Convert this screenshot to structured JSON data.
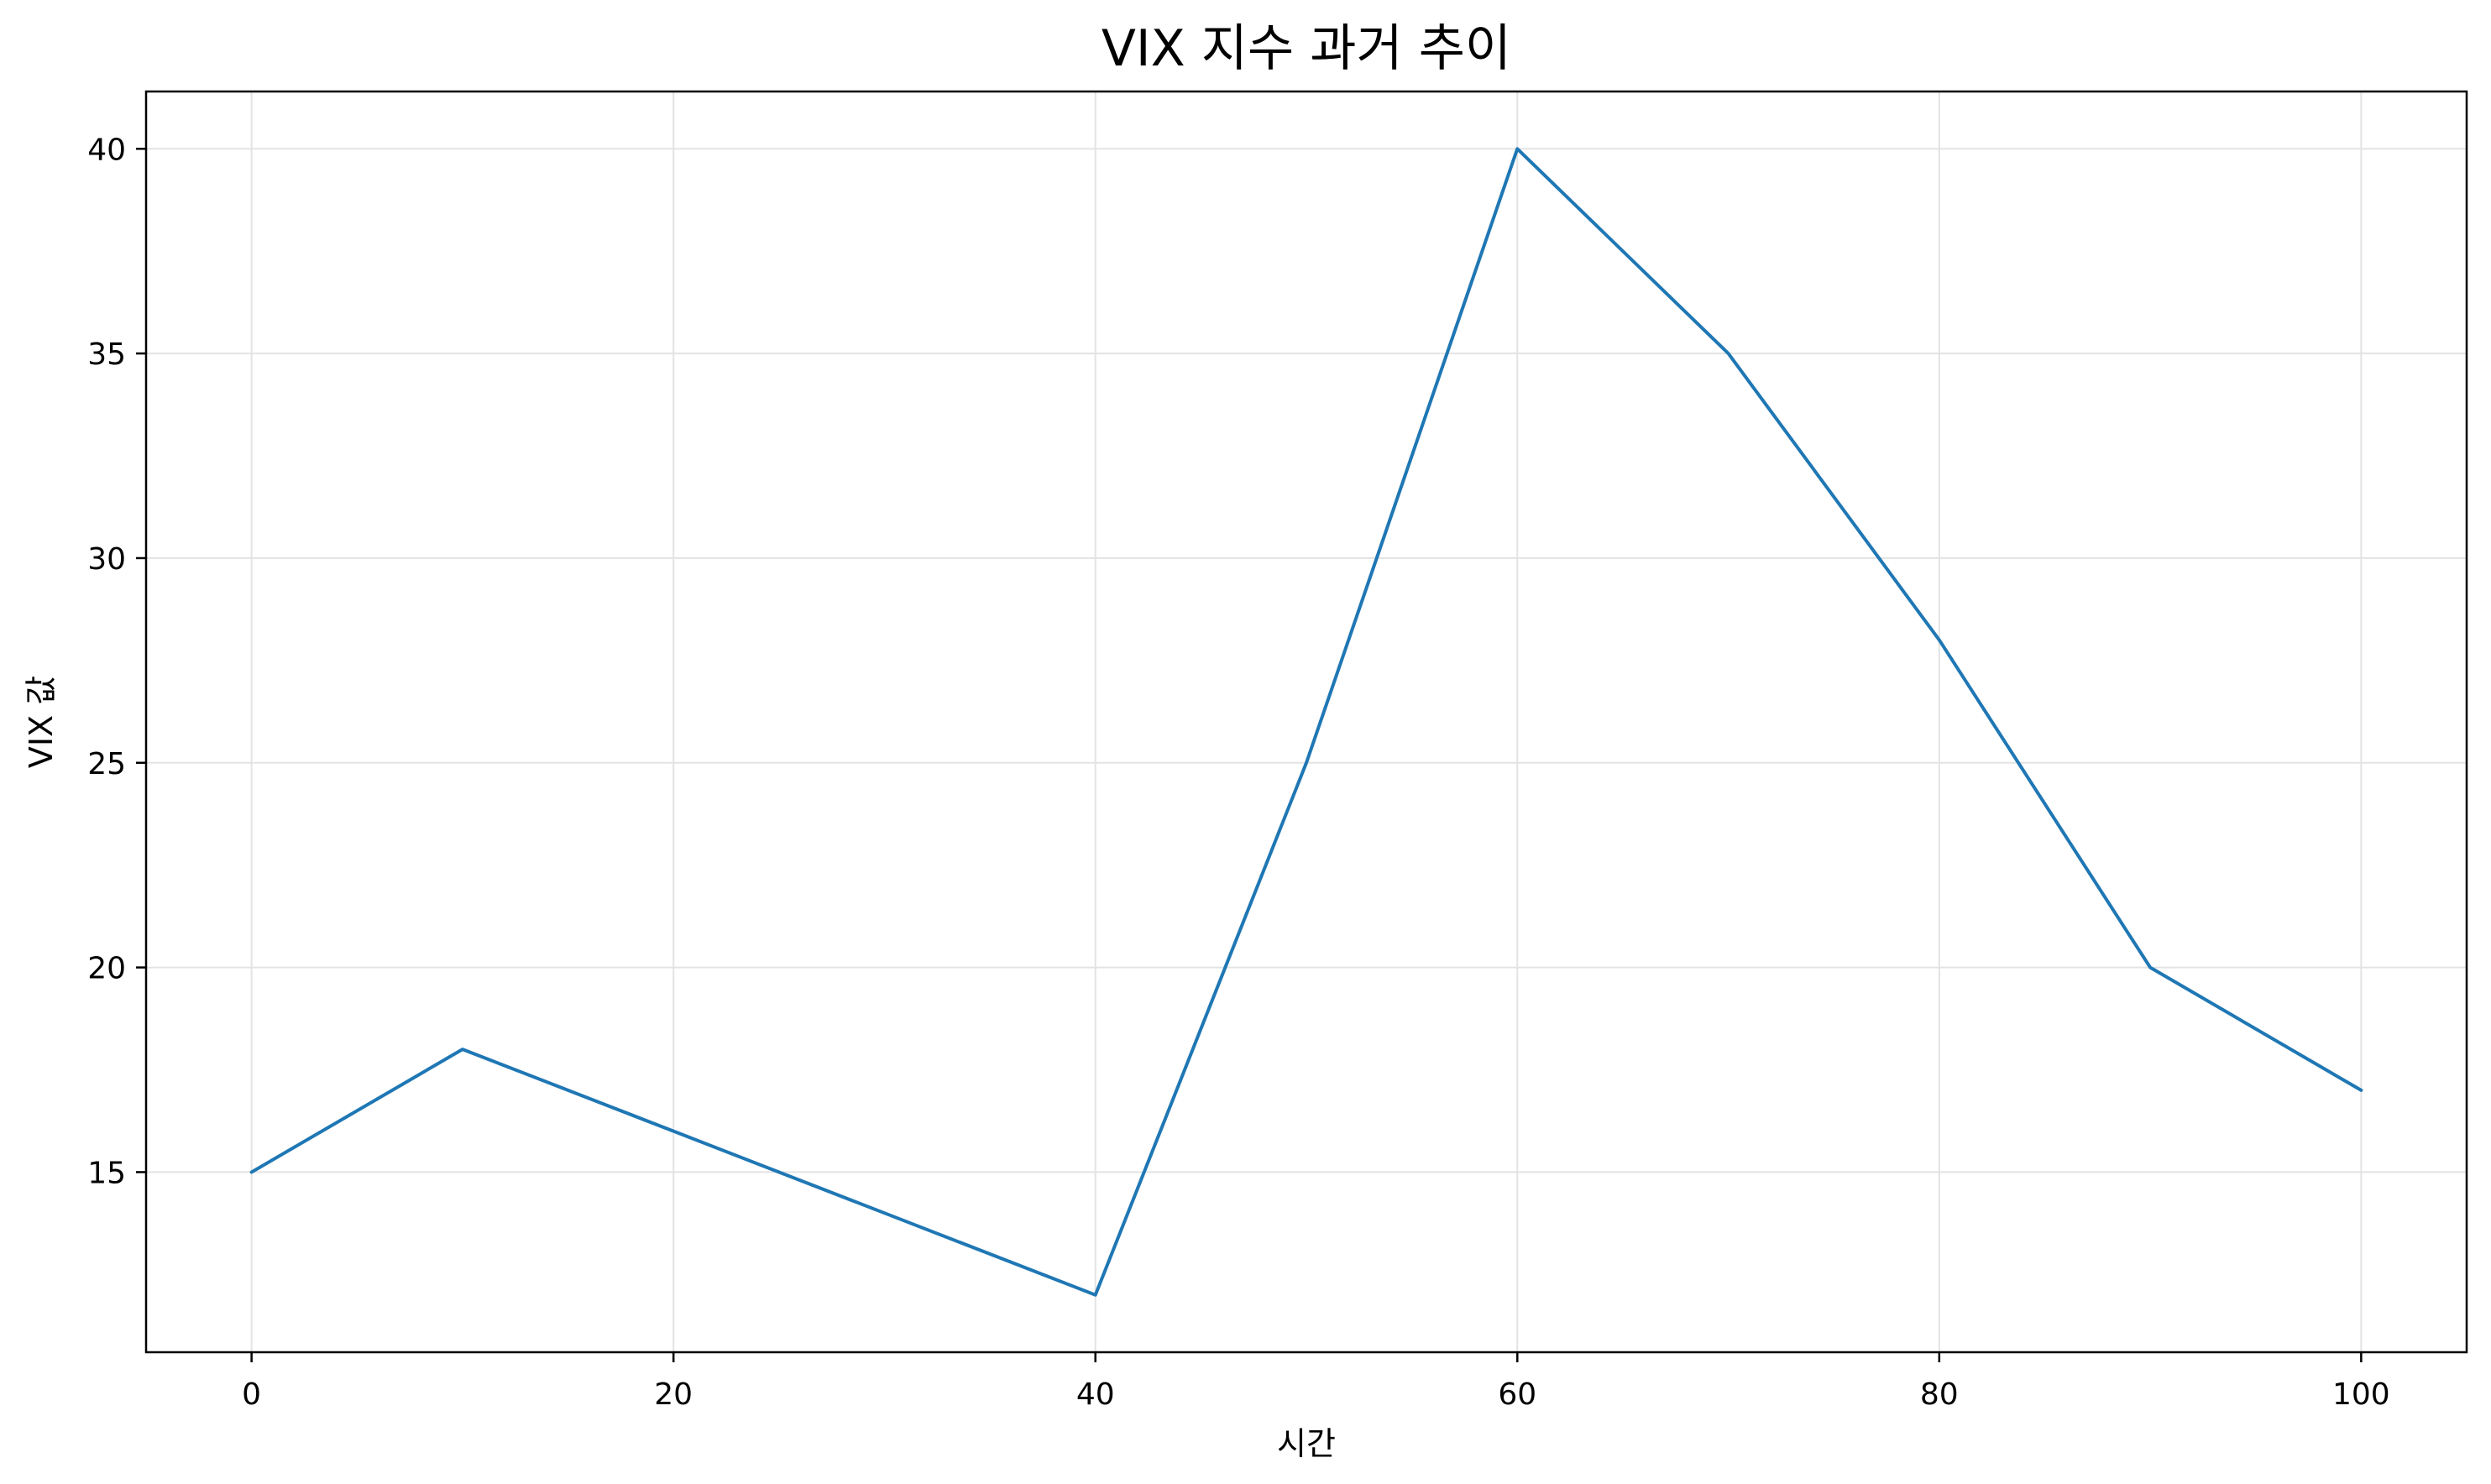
{
  "chart_data": {
    "type": "line",
    "title": "VIX 지수 과거 추이",
    "xlabel": "시간",
    "ylabel": "VIX 값",
    "x": [
      0,
      10,
      20,
      30,
      40,
      50,
      60,
      70,
      80,
      90,
      100
    ],
    "series": [
      {
        "values": [
          15,
          18,
          16,
          14,
          12,
          25,
          40,
          35,
          28,
          20,
          17
        ],
        "color": "#1f77b4"
      }
    ],
    "xticks": [
      0,
      20,
      40,
      60,
      80,
      100
    ],
    "yticks": [
      15,
      20,
      25,
      30,
      35,
      40
    ],
    "xlim": [
      -5,
      105
    ],
    "ylim": [
      10.6,
      41.4
    ],
    "grid": true
  }
}
